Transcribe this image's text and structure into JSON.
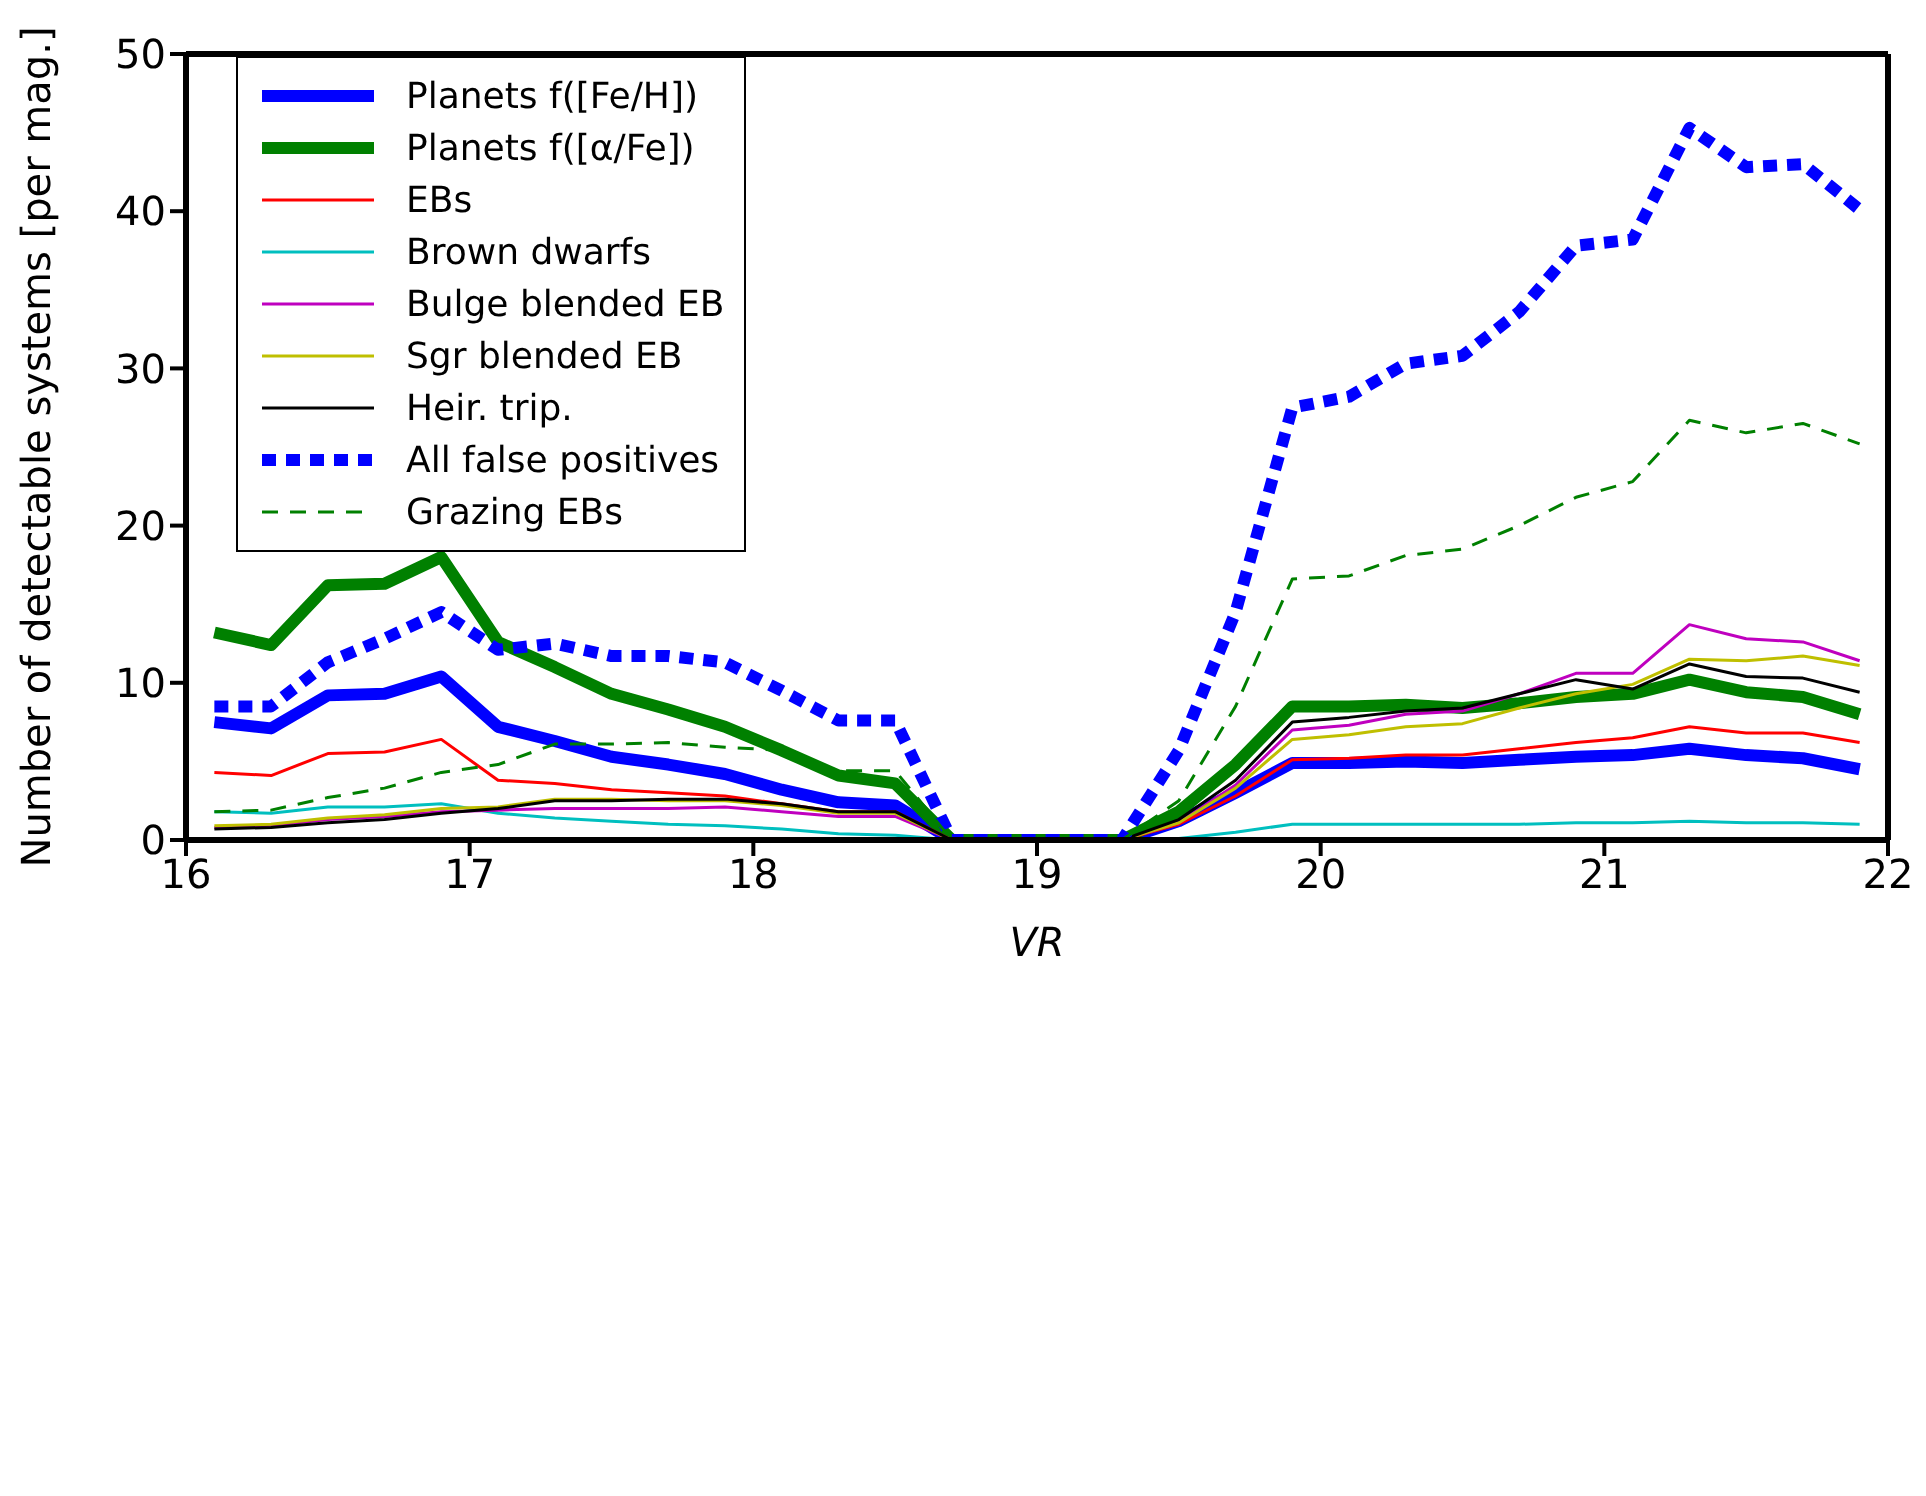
{
  "chart_data": {
    "type": "line",
    "xlabel": "VR",
    "ylabel": "Number of detectable systems [per mag.]",
    "x": [
      16.1,
      16.3,
      16.5,
      16.7,
      16.9,
      17.1,
      17.3,
      17.5,
      17.7,
      17.9,
      18.1,
      18.3,
      18.5,
      18.7,
      18.9,
      19.1,
      19.3,
      19.5,
      19.7,
      19.9,
      20.1,
      20.3,
      20.5,
      20.7,
      20.9,
      21.1,
      21.3,
      21.5,
      21.7,
      21.9
    ],
    "xlim": [
      16,
      22
    ],
    "xticks": [
      16,
      17,
      18,
      19,
      20,
      21,
      22
    ],
    "ylim": [
      0,
      50
    ],
    "yticks": [
      0,
      10,
      20,
      30,
      40,
      50
    ],
    "grid": false,
    "legend": "top left",
    "marker": "none",
    "series": [
      {
        "name": "Planets f([Fe/H])",
        "color": "#0000ff",
        "line_style": "solid",
        "values": [
          7.5,
          7.1,
          9.2,
          9.3,
          10.4,
          7.2,
          6.3,
          5.3,
          4.8,
          4.2,
          3.2,
          2.4,
          2.2,
          0,
          0,
          0,
          0,
          1.2,
          3.0,
          4.9,
          4.9,
          5.0,
          4.9,
          5.1,
          5.3,
          5.4,
          5.8,
          5.4,
          5.2,
          4.5
        ]
      },
      {
        "name": "Planets f([α/Fe])",
        "color": "#008000",
        "line_style": "solid",
        "values": [
          13.2,
          12.4,
          16.2,
          16.3,
          18.0,
          12.6,
          11.0,
          9.3,
          8.3,
          7.2,
          5.7,
          4.1,
          3.6,
          0,
          0,
          0,
          0,
          1.8,
          4.8,
          8.5,
          8.5,
          8.6,
          8.4,
          8.7,
          9.1,
          9.3,
          10.2,
          9.4,
          9.1,
          8.0
        ]
      },
      {
        "name": "EBs",
        "color": "#ff0000",
        "line_style": "solid",
        "values": [
          4.3,
          4.1,
          5.5,
          5.6,
          6.4,
          3.8,
          3.6,
          3.2,
          3.0,
          2.8,
          2.3,
          1.8,
          1.8,
          0,
          0,
          0,
          0,
          1.0,
          2.8,
          5.1,
          5.2,
          5.4,
          5.4,
          5.8,
          6.2,
          6.5,
          7.2,
          6.8,
          6.8,
          6.2
        ]
      },
      {
        "name": "Brown dwarfs",
        "color": "#00bfbf",
        "line_style": "solid",
        "values": [
          1.8,
          1.7,
          2.1,
          2.1,
          2.3,
          1.7,
          1.4,
          1.2,
          1.0,
          0.9,
          0.7,
          0.4,
          0.3,
          0,
          0,
          0,
          0,
          0.1,
          0.5,
          1.0,
          1.0,
          1.0,
          1.0,
          1.0,
          1.1,
          1.1,
          1.2,
          1.1,
          1.1,
          1.0
        ]
      },
      {
        "name": "Bulge blended EB",
        "color": "#bf00bf",
        "line_style": "solid",
        "values": [
          0.8,
          0.9,
          1.3,
          1.5,
          1.8,
          1.9,
          2.0,
          2.0,
          2.0,
          2.1,
          1.8,
          1.5,
          1.5,
          0,
          0,
          0,
          0,
          1.1,
          3.5,
          7.0,
          7.3,
          8.0,
          8.2,
          9.3,
          10.6,
          10.6,
          13.7,
          12.8,
          12.6,
          11.4
        ]
      },
      {
        "name": "Sgr blended EB",
        "color": "#bfbf00",
        "line_style": "solid",
        "values": [
          0.9,
          1.0,
          1.4,
          1.6,
          2.0,
          2.1,
          2.6,
          2.6,
          2.5,
          2.5,
          2.2,
          1.7,
          1.7,
          0,
          0,
          0,
          0,
          1.1,
          3.3,
          6.4,
          6.7,
          7.2,
          7.4,
          8.4,
          9.3,
          9.9,
          11.5,
          11.4,
          11.7,
          11.1
        ]
      },
      {
        "name": "Heir. trip.",
        "color": "#000000",
        "line_style": "solid",
        "values": [
          0.7,
          0.8,
          1.1,
          1.3,
          1.7,
          2.0,
          2.5,
          2.5,
          2.6,
          2.6,
          2.3,
          1.8,
          1.8,
          0,
          0,
          0,
          0,
          1.3,
          3.8,
          7.5,
          7.8,
          8.2,
          8.4,
          9.3,
          10.2,
          9.6,
          11.2,
          10.4,
          10.3,
          9.4
        ]
      },
      {
        "name": "All false positives",
        "color": "#0000ff",
        "line_style": "dashed",
        "values": [
          8.5,
          8.5,
          11.3,
          12.8,
          14.5,
          12.1,
          12.5,
          11.7,
          11.7,
          11.3,
          9.5,
          7.6,
          7.6,
          0,
          0,
          0,
          0,
          5.7,
          14.5,
          27.5,
          28.2,
          30.3,
          30.8,
          33.6,
          37.8,
          38.2,
          45.3,
          42.8,
          43.0,
          40.1
        ]
      },
      {
        "name": "Grazing EBs",
        "color": "#008000",
        "line_style": "dashed",
        "values": [
          1.8,
          1.9,
          2.7,
          3.3,
          4.3,
          4.8,
          6.1,
          6.1,
          6.2,
          5.9,
          5.7,
          4.4,
          4.4,
          0,
          0,
          0,
          0,
          2.5,
          8.5,
          16.6,
          16.8,
          18.1,
          18.5,
          20.0,
          21.8,
          22.8,
          26.7,
          25.9,
          26.5,
          25.2
        ]
      }
    ]
  }
}
